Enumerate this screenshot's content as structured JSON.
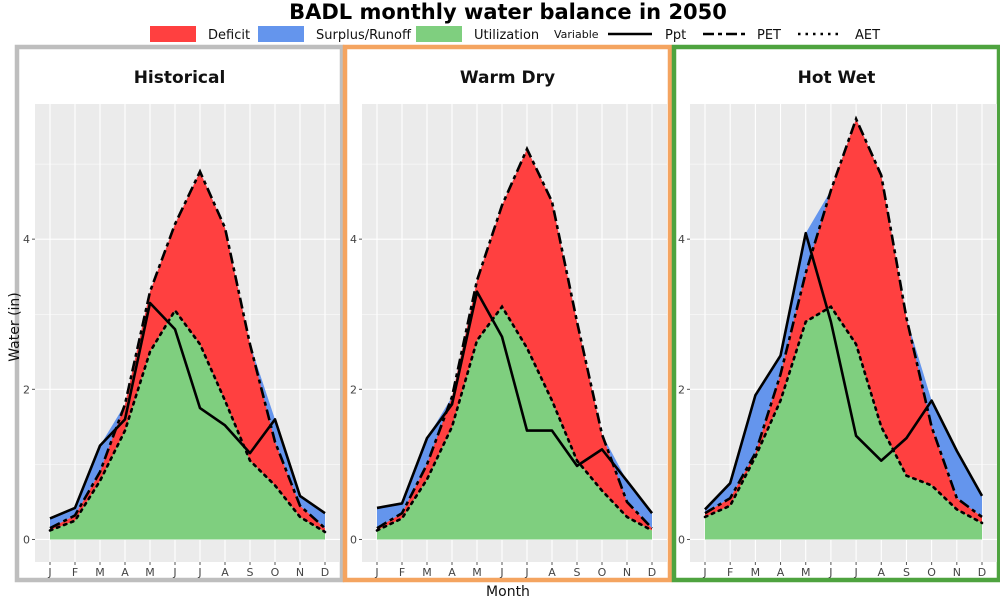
{
  "figure": {
    "title": "BADL monthly water balance in 2050",
    "xlabel": "Month",
    "ylabel": "Water (in)"
  },
  "legend": {
    "fill_items": [
      {
        "label": "Deficit",
        "color": "#FF4040"
      },
      {
        "label": "Surplus/Runoff",
        "color": "#6495ED"
      },
      {
        "label": "Utilization",
        "color": "#7FCF7F"
      }
    ],
    "line_title": "Variable",
    "line_items": [
      {
        "label": "Ppt",
        "dash": "solid"
      },
      {
        "label": "PET",
        "dash": "longdash"
      },
      {
        "label": "AET",
        "dash": "dotted"
      }
    ]
  },
  "chart_data": [
    {
      "type": "area",
      "title": "Historical",
      "border_color": "#BEBEBE",
      "categories": [
        "J",
        "F",
        "M",
        "A",
        "M",
        "J",
        "J",
        "A",
        "S",
        "O",
        "N",
        "D"
      ],
      "yticks": [
        0,
        2,
        4
      ],
      "ylim": [
        -0.3,
        5.8
      ],
      "grid": true,
      "series": [
        {
          "name": "Ppt",
          "values": [
            0.28,
            0.42,
            1.25,
            1.6,
            3.15,
            2.8,
            1.75,
            1.52,
            1.15,
            1.6,
            0.58,
            0.35
          ]
        },
        {
          "name": "PET",
          "values": [
            0.15,
            0.32,
            0.9,
            1.8,
            3.3,
            4.2,
            4.9,
            4.15,
            2.6,
            1.3,
            0.45,
            0.15
          ]
        },
        {
          "name": "AET",
          "values": [
            0.12,
            0.25,
            0.78,
            1.45,
            2.5,
            3.05,
            2.6,
            1.85,
            1.05,
            0.72,
            0.3,
            0.1
          ]
        }
      ]
    },
    {
      "type": "area",
      "title": "Warm Dry",
      "border_color": "#F4A460",
      "categories": [
        "J",
        "F",
        "M",
        "A",
        "M",
        "J",
        "J",
        "A",
        "S",
        "O",
        "N",
        "D"
      ],
      "yticks": [
        0,
        2,
        4
      ],
      "ylim": [
        -0.3,
        5.8
      ],
      "grid": true,
      "series": [
        {
          "name": "Ppt",
          "values": [
            0.42,
            0.48,
            1.35,
            1.8,
            3.3,
            2.7,
            1.45,
            1.45,
            0.98,
            1.2,
            0.78,
            0.35
          ]
        },
        {
          "name": "PET",
          "values": [
            0.15,
            0.35,
            1.0,
            1.9,
            3.45,
            4.45,
            5.2,
            4.5,
            2.9,
            1.4,
            0.5,
            0.15
          ]
        },
        {
          "name": "AET",
          "values": [
            0.12,
            0.28,
            0.8,
            1.5,
            2.65,
            3.1,
            2.55,
            1.85,
            1.05,
            0.65,
            0.3,
            0.12
          ]
        }
      ]
    },
    {
      "type": "area",
      "title": "Hot Wet",
      "border_color": "#4EA33F",
      "categories": [
        "J",
        "F",
        "M",
        "A",
        "M",
        "J",
        "J",
        "A",
        "S",
        "O",
        "N",
        "D"
      ],
      "yticks": [
        0,
        2,
        4
      ],
      "ylim": [
        -0.3,
        5.8
      ],
      "grid": true,
      "series": [
        {
          "name": "Ppt",
          "values": [
            0.4,
            0.75,
            1.92,
            2.45,
            4.08,
            2.9,
            1.38,
            1.05,
            1.35,
            1.85,
            1.18,
            0.58
          ]
        },
        {
          "name": "PET",
          "values": [
            0.35,
            0.55,
            1.15,
            2.2,
            3.55,
            4.65,
            5.6,
            4.85,
            2.95,
            1.5,
            0.55,
            0.3
          ]
        },
        {
          "name": "AET",
          "values": [
            0.3,
            0.45,
            1.1,
            1.85,
            2.9,
            3.1,
            2.6,
            1.5,
            0.85,
            0.72,
            0.4,
            0.22
          ]
        }
      ]
    }
  ]
}
